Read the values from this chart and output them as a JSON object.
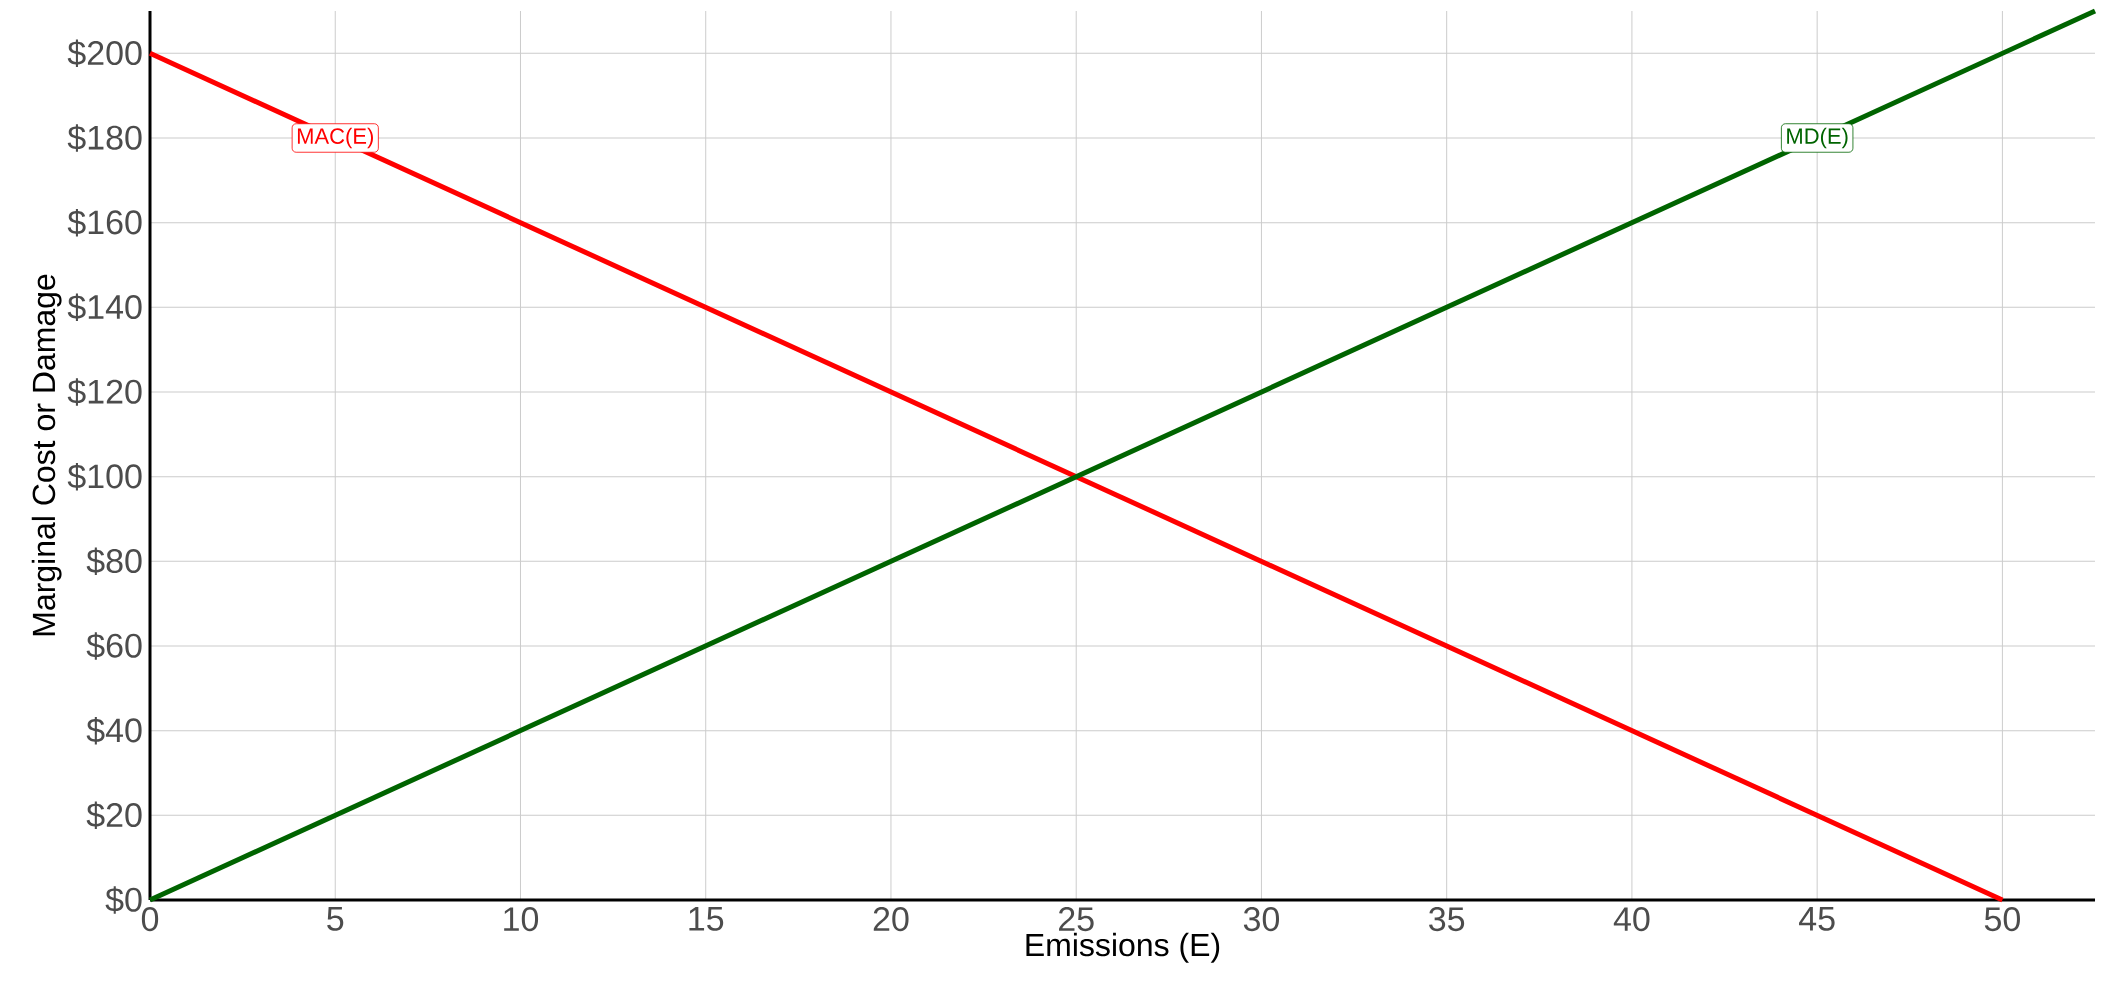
{
  "chart_data": {
    "type": "line",
    "xlabel": "Emissions (E)",
    "ylabel": "Marginal Cost or Damage",
    "series": [
      {
        "color": "#ff0000",
        "x": [
          0,
          50
        ],
        "values": [
          200,
          0
        ]
      },
      {
        "color": "#006400",
        "x": [
          0,
          52.5
        ],
        "values": [
          0,
          210
        ]
      }
    ],
    "annotations": [
      {
        "text": "MAC(E)",
        "x": 5,
        "y": 180
      },
      {
        "text": "MD(E)",
        "x": 45,
        "y": 180
      }
    ],
    "xlim": [
      0,
      52.5
    ],
    "ylim": [
      0,
      210
    ],
    "xticks": [
      0,
      5,
      10,
      15,
      20,
      25,
      30,
      35,
      40,
      45,
      50
    ],
    "yticks": [
      {
        "value": 0,
        "label": "$0"
      },
      {
        "value": 20,
        "label": "$20"
      },
      {
        "value": 40,
        "label": "$40"
      },
      {
        "value": 60,
        "label": "$60"
      },
      {
        "value": 80,
        "label": "$80"
      },
      {
        "value": 100,
        "label": "$100"
      },
      {
        "value": 120,
        "label": "$120"
      },
      {
        "value": 140,
        "label": "$140"
      },
      {
        "value": 160,
        "label": "$160"
      },
      {
        "value": 180,
        "label": "$180"
      },
      {
        "value": 200,
        "label": "$200"
      }
    ],
    "grid": true
  }
}
